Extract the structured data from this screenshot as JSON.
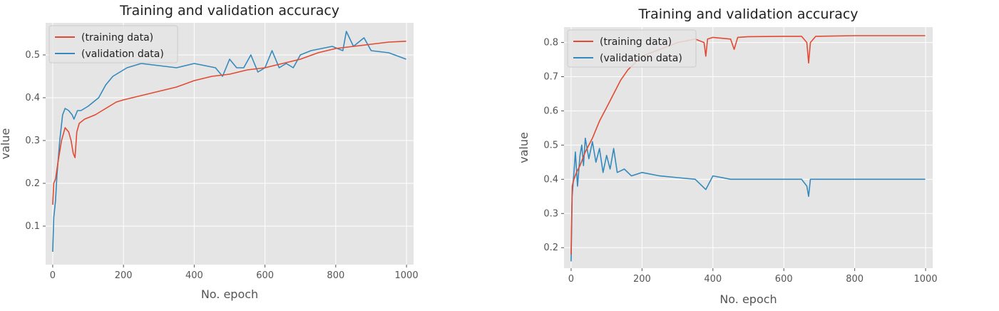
{
  "chart_data": [
    {
      "type": "line",
      "title": "Training and validation accuracy",
      "xlabel": "No. epoch",
      "ylabel": "value",
      "xlim": [
        -20,
        1020
      ],
      "ylim": [
        0.01,
        0.575
      ],
      "xticks": [
        0,
        200,
        400,
        600,
        800,
        1000
      ],
      "yticks": [
        0.1,
        0.2,
        0.3,
        0.4,
        0.5
      ],
      "ytick_labels": [
        "0.1",
        "0.2",
        "0.3",
        "0.4",
        "0.5"
      ],
      "grid": true,
      "legend_position": "top-left",
      "series": [
        {
          "name": "(training data)",
          "color": "#e24a33",
          "x": [
            0,
            3,
            8,
            15,
            25,
            35,
            45,
            52,
            58,
            63,
            68,
            75,
            90,
            120,
            150,
            180,
            200,
            250,
            300,
            350,
            400,
            450,
            500,
            550,
            600,
            650,
            700,
            750,
            800,
            850,
            900,
            950,
            999
          ],
          "y": [
            0.15,
            0.2,
            0.21,
            0.25,
            0.3,
            0.33,
            0.32,
            0.3,
            0.27,
            0.26,
            0.32,
            0.34,
            0.35,
            0.36,
            0.375,
            0.39,
            0.395,
            0.405,
            0.415,
            0.425,
            0.44,
            0.45,
            0.455,
            0.465,
            0.47,
            0.48,
            0.49,
            0.505,
            0.515,
            0.52,
            0.525,
            0.53,
            0.532
          ]
        },
        {
          "name": "(validation data)",
          "color": "#348abd",
          "x": [
            0,
            3,
            8,
            12,
            20,
            28,
            35,
            45,
            55,
            60,
            70,
            80,
            100,
            130,
            150,
            170,
            190,
            210,
            250,
            300,
            350,
            400,
            430,
            460,
            480,
            500,
            520,
            540,
            560,
            580,
            600,
            620,
            640,
            660,
            680,
            700,
            730,
            760,
            790,
            820,
            830,
            850,
            880,
            900,
            950,
            999
          ],
          "y": [
            0.04,
            0.12,
            0.16,
            0.22,
            0.3,
            0.36,
            0.375,
            0.37,
            0.36,
            0.35,
            0.37,
            0.37,
            0.38,
            0.4,
            0.43,
            0.45,
            0.46,
            0.47,
            0.48,
            0.475,
            0.47,
            0.48,
            0.475,
            0.47,
            0.45,
            0.49,
            0.47,
            0.47,
            0.5,
            0.46,
            0.47,
            0.51,
            0.47,
            0.48,
            0.47,
            0.5,
            0.51,
            0.515,
            0.52,
            0.51,
            0.555,
            0.52,
            0.54,
            0.51,
            0.505,
            0.49
          ]
        }
      ]
    },
    {
      "type": "line",
      "title": "Training and validation accuracy",
      "xlabel": "No. epoch",
      "ylabel": "value",
      "xlim": [
        -20,
        1020
      ],
      "ylim": [
        0.14,
        0.845
      ],
      "xticks": [
        0,
        200,
        400,
        600,
        800,
        1000
      ],
      "yticks": [
        0.2,
        0.3,
        0.4,
        0.5,
        0.6,
        0.7,
        0.8
      ],
      "ytick_labels": [
        "0.2",
        "0.3",
        "0.4",
        "0.5",
        "0.6",
        "0.7",
        "0.8"
      ],
      "grid": true,
      "legend_position": "top-left",
      "series": [
        {
          "name": "(training data)",
          "color": "#e24a33",
          "x": [
            0,
            3,
            8,
            15,
            25,
            40,
            60,
            80,
            100,
            120,
            140,
            160,
            180,
            200,
            250,
            300,
            350,
            375,
            380,
            385,
            400,
            450,
            460,
            470,
            500,
            600,
            650,
            665,
            670,
            675,
            690,
            800,
            900,
            999
          ],
          "y": [
            0.18,
            0.38,
            0.4,
            0.42,
            0.44,
            0.48,
            0.52,
            0.57,
            0.61,
            0.65,
            0.69,
            0.72,
            0.74,
            0.76,
            0.78,
            0.8,
            0.81,
            0.8,
            0.76,
            0.81,
            0.815,
            0.81,
            0.78,
            0.815,
            0.817,
            0.818,
            0.818,
            0.8,
            0.74,
            0.8,
            0.818,
            0.82,
            0.82,
            0.82
          ]
        },
        {
          "name": "(validation data)",
          "color": "#348abd",
          "x": [
            0,
            3,
            8,
            12,
            18,
            25,
            30,
            35,
            40,
            50,
            60,
            70,
            80,
            90,
            100,
            110,
            120,
            130,
            150,
            170,
            200,
            250,
            300,
            350,
            380,
            400,
            450,
            500,
            550,
            600,
            650,
            665,
            670,
            675,
            700,
            800,
            900,
            999
          ],
          "y": [
            0.16,
            0.35,
            0.42,
            0.48,
            0.38,
            0.47,
            0.5,
            0.44,
            0.52,
            0.46,
            0.51,
            0.45,
            0.49,
            0.42,
            0.47,
            0.43,
            0.49,
            0.42,
            0.43,
            0.41,
            0.42,
            0.41,
            0.405,
            0.4,
            0.37,
            0.41,
            0.4,
            0.4,
            0.4,
            0.4,
            0.4,
            0.38,
            0.35,
            0.4,
            0.4,
            0.4,
            0.4,
            0.4
          ]
        }
      ]
    }
  ]
}
